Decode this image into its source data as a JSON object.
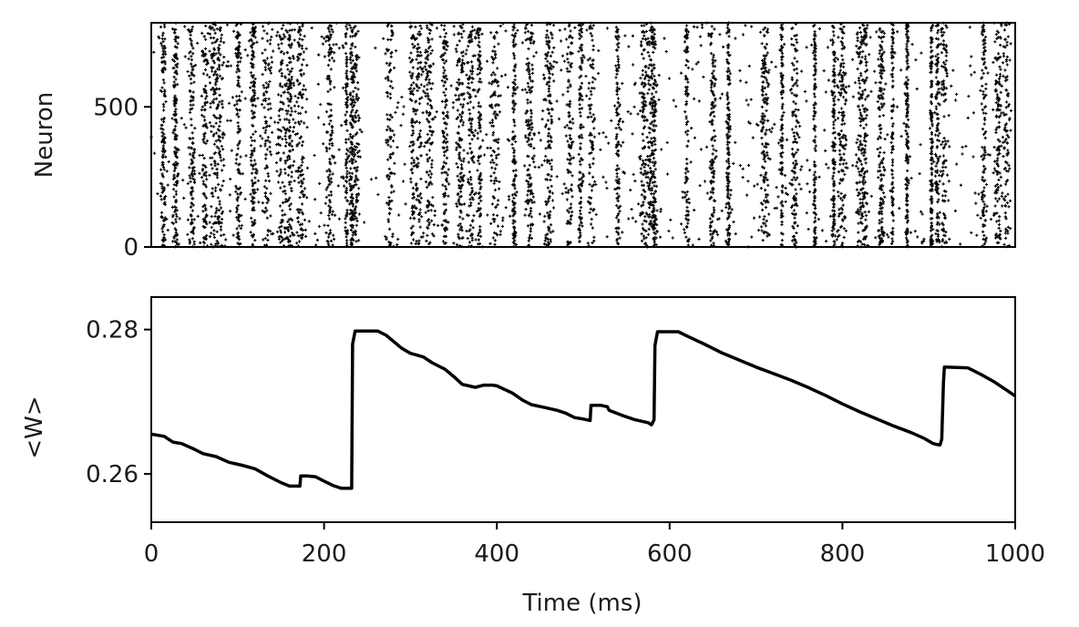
{
  "chart_data": [
    {
      "type": "scatter",
      "panel": "raster",
      "title": "",
      "xlabel": "",
      "ylabel": "Neuron",
      "xlim": [
        0,
        1000
      ],
      "ylim": [
        0,
        800
      ],
      "yticks": [
        0,
        500
      ],
      "ytick_labels": [
        "0",
        "500"
      ],
      "xtick_labels_shown": false,
      "marker": "+",
      "color": "#000000",
      "neuron_count": 800,
      "population_bursts_ms": [
        14,
        28,
        47,
        62,
        72,
        78,
        101,
        118,
        134,
        151,
        160,
        173,
        207,
        226,
        232,
        236,
        276,
        302,
        310,
        322,
        340,
        358,
        370,
        380,
        398,
        420,
        438,
        460,
        484,
        497,
        510,
        540,
        570,
        578,
        582,
        620,
        650,
        668,
        710,
        730,
        745,
        768,
        790,
        800,
        820,
        826,
        845,
        858,
        875,
        903,
        910,
        918,
        964,
        980,
        990
      ],
      "sparse_interval_ms": [
        238,
        272
      ]
    },
    {
      "type": "line",
      "panel": "mean_weight",
      "title": "",
      "xlabel": "Time (ms)",
      "ylabel": "<W>",
      "xlim": [
        0,
        1000
      ],
      "ylim": [
        0.2533,
        0.2845
      ],
      "xticks": [
        0,
        200,
        400,
        600,
        800,
        1000
      ],
      "xtick_labels": [
        "0",
        "200",
        "400",
        "600",
        "800",
        "1000"
      ],
      "yticks": [
        0.26,
        0.28
      ],
      "ytick_labels": [
        "0.26",
        "0.28"
      ],
      "color": "#000000",
      "x": [
        0,
        15,
        25,
        35,
        50,
        60,
        75,
        90,
        105,
        120,
        135,
        150,
        160,
        172,
        173,
        180,
        190,
        200,
        210,
        220,
        232,
        233,
        236,
        240,
        262,
        272,
        280,
        290,
        300,
        315,
        325,
        340,
        350,
        360,
        375,
        385,
        395,
        400,
        418,
        430,
        440,
        455,
        470,
        480,
        490,
        500,
        508,
        509,
        520,
        528,
        530,
        545,
        560,
        575,
        579,
        580,
        582,
        583,
        586,
        600,
        610,
        620,
        640,
        660,
        680,
        700,
        720,
        740,
        760,
        780,
        800,
        820,
        840,
        860,
        880,
        895,
        905,
        912,
        913,
        915,
        917,
        918,
        945,
        960,
        975,
        990,
        1000
      ],
      "y": [
        0.2655,
        0.2652,
        0.2644,
        0.2642,
        0.2634,
        0.2628,
        0.2624,
        0.2616,
        0.2612,
        0.2607,
        0.2597,
        0.2588,
        0.2583,
        0.2583,
        0.2597,
        0.2597,
        0.2596,
        0.259,
        0.2584,
        0.258,
        0.258,
        0.278,
        0.2798,
        0.2798,
        0.2798,
        0.2792,
        0.2784,
        0.2774,
        0.2767,
        0.2762,
        0.2754,
        0.2745,
        0.2735,
        0.2724,
        0.272,
        0.2723,
        0.2723,
        0.2722,
        0.2712,
        0.2702,
        0.2696,
        0.2692,
        0.2688,
        0.2684,
        0.2678,
        0.2676,
        0.2674,
        0.2695,
        0.2695,
        0.2693,
        0.2688,
        0.2681,
        0.2675,
        0.2671,
        0.2668,
        0.267,
        0.2675,
        0.2778,
        0.2797,
        0.2797,
        0.2797,
        0.2791,
        0.278,
        0.2768,
        0.2758,
        0.2748,
        0.2739,
        0.273,
        0.272,
        0.2709,
        0.2697,
        0.2686,
        0.2676,
        0.2666,
        0.2657,
        0.2649,
        0.2642,
        0.264,
        0.264,
        0.2648,
        0.2728,
        0.2748,
        0.2747,
        0.2738,
        0.2728,
        0.2716,
        0.2708
      ]
    }
  ]
}
